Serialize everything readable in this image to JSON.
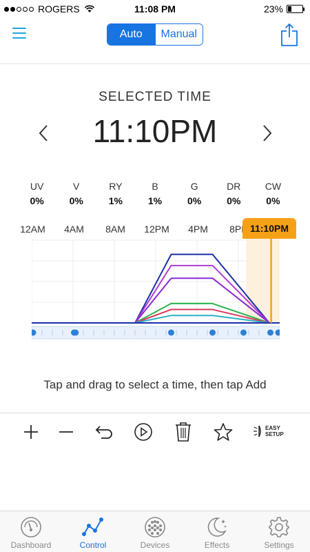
{
  "status_bar": {
    "carrier": "ROGERS",
    "time": "11:08 PM",
    "battery": "23%",
    "battery_level": 0.23
  },
  "nav": {
    "modes": [
      "Auto",
      "Manual"
    ],
    "selected_mode": "Auto"
  },
  "selected": {
    "label": "SELECTED TIME",
    "time": "11:10PM"
  },
  "channels": [
    {
      "name": "UV",
      "value": "0%"
    },
    {
      "name": "V",
      "value": "0%"
    },
    {
      "name": "RY",
      "value": "1%"
    },
    {
      "name": "B",
      "value": "1%"
    },
    {
      "name": "G",
      "value": "0%"
    },
    {
      "name": "DR",
      "value": "0%"
    },
    {
      "name": "CW",
      "value": "0%"
    }
  ],
  "timeline": {
    "hour_labels": [
      "12AM",
      "4AM",
      "8AM",
      "12PM",
      "4PM",
      "8PM"
    ],
    "marker_label": "11:10PM"
  },
  "chart_data": {
    "type": "line",
    "x": [
      0,
      10,
      13.5,
      17.5,
      23
    ],
    "x_domain": [
      0,
      24
    ],
    "marker_hour": 23.17,
    "control_points_hours": [
      0,
      4.1,
      4.25,
      13.5,
      17.5,
      20.5,
      23.1,
      24
    ],
    "ylim": [
      0,
      100
    ],
    "series": [
      {
        "color": "#1a2fa8",
        "values": [
          0,
          0,
          92,
          92,
          0
        ]
      },
      {
        "color": "#b13ad6",
        "values": [
          0,
          0,
          77,
          77,
          0
        ]
      },
      {
        "color": "#8a2bd1",
        "values": [
          0,
          0,
          60,
          60,
          0
        ]
      },
      {
        "color": "#2bb24c",
        "values": [
          0,
          0,
          26,
          26,
          0
        ]
      },
      {
        "color": "#d93a5a",
        "values": [
          0,
          0,
          18,
          18,
          0
        ]
      },
      {
        "color": "#2ab0c8",
        "values": [
          0,
          0,
          10,
          10,
          0
        ]
      }
    ]
  },
  "helper_text": "Tap and drag to select a time, then tap Add",
  "toolbar": {
    "icons": [
      "plus-icon",
      "minus-icon",
      "undo-icon",
      "play-icon",
      "trash-icon",
      "star-icon"
    ],
    "easy_setup_line1": "EASY",
    "easy_setup_line2": "SETUP"
  },
  "tabs": [
    {
      "label": "Dashboard",
      "icon": "gauge-icon",
      "active": false
    },
    {
      "label": "Control",
      "icon": "graph-icon",
      "active": true
    },
    {
      "label": "Devices",
      "icon": "led-array-icon",
      "active": false
    },
    {
      "label": "Effects",
      "icon": "moon-stars-icon",
      "active": false
    },
    {
      "label": "Settings",
      "icon": "gear-icon",
      "active": false
    }
  ],
  "colors": {
    "accent": "#1874e0",
    "marker": "#f5a118",
    "marker_fill": "#fdf0dc"
  }
}
